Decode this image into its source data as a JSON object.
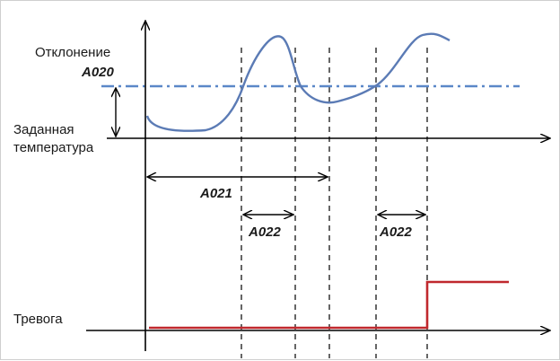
{
  "labels": {
    "deviation": "Отклонение",
    "a020": "A020",
    "setpoint_line1": "Заданная",
    "setpoint_line2": "температура",
    "alarm": "Тревога",
    "a021": "A021",
    "a022_first": "A022",
    "a022_second": "A022"
  },
  "colors": {
    "curve": "#5b7bb5",
    "threshold": "#5b87c8",
    "alarm": "#c0282d",
    "axis": "#000000"
  }
}
